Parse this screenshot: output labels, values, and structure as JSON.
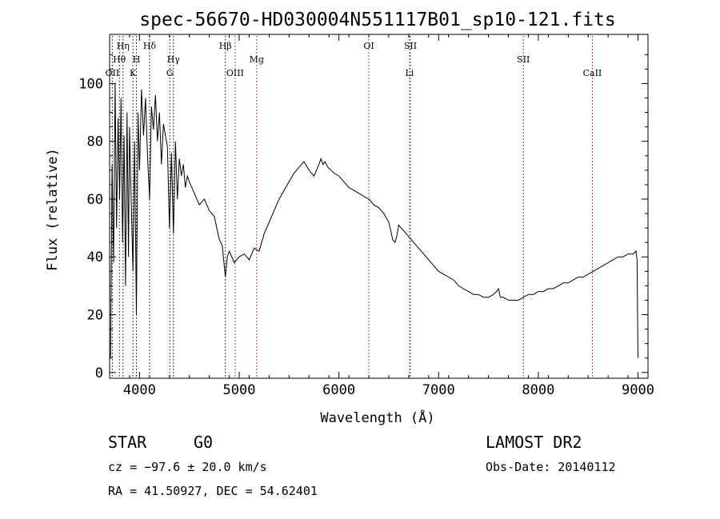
{
  "chart_data": {
    "type": "line",
    "title": "spec-56670-HD030004N551117B01_sp10-121.fits",
    "xlabel": "Wavelength (Å)",
    "ylabel": "Flux (relative)",
    "xlim": [
      3700,
      9100
    ],
    "ylim": [
      -2,
      117
    ],
    "x_ticks": [
      "4000",
      "5000",
      "6000",
      "7000",
      "8000",
      "9000"
    ],
    "y_ticks": [
      "0",
      "20",
      "40",
      "60",
      "80",
      "100"
    ],
    "x_tick_values": [
      4000,
      5000,
      6000,
      7000,
      8000,
      9000
    ],
    "y_tick_values": [
      0,
      20,
      40,
      60,
      80,
      100
    ],
    "grid": false,
    "series": [
      {
        "x": [
          3710,
          3725,
          3740,
          3755,
          3770,
          3785,
          3800,
          3815,
          3830,
          3845,
          3860,
          3875,
          3889,
          3900,
          3915,
          3934,
          3950,
          3969,
          3985,
          4000,
          4020,
          4040,
          4060,
          4080,
          4101,
          4120,
          4140,
          4160,
          4180,
          4200,
          4220,
          4240,
          4260,
          4280,
          4300,
          4320,
          4340,
          4360,
          4380,
          4400,
          4420,
          4440,
          4460,
          4480,
          4500,
          4550,
          4600,
          4650,
          4700,
          4750,
          4800,
          4830,
          4861,
          4880,
          4900,
          4950,
          5000,
          5050,
          5100,
          5150,
          5200,
          5250,
          5300,
          5350,
          5400,
          5450,
          5500,
          5550,
          5600,
          5650,
          5700,
          5750,
          5800,
          5820,
          5840,
          5860,
          5890,
          5920,
          5950,
          6000,
          6050,
          6100,
          6150,
          6200,
          6250,
          6300,
          6350,
          6400,
          6450,
          6500,
          6520,
          6540,
          6563,
          6580,
          6600,
          6650,
          6700,
          6750,
          6800,
          6850,
          6900,
          6950,
          7000,
          7050,
          7100,
          7150,
          7200,
          7250,
          7300,
          7350,
          7400,
          7450,
          7500,
          7550,
          7580,
          7600,
          7620,
          7650,
          7700,
          7750,
          7800,
          7850,
          7900,
          7950,
          8000,
          8050,
          8100,
          8150,
          8200,
          8250,
          8300,
          8350,
          8400,
          8450,
          8500,
          8550,
          8600,
          8650,
          8700,
          8750,
          8800,
          8850,
          8900,
          8950,
          8980,
          8990,
          9000
        ],
        "y": [
          5,
          72,
          38,
          100,
          50,
          88,
          60,
          95,
          45,
          82,
          30,
          90,
          40,
          85,
          62,
          35,
          80,
          20,
          90,
          70,
          98,
          82,
          95,
          75,
          60,
          92,
          84,
          96,
          80,
          90,
          72,
          86,
          82,
          78,
          50,
          76,
          48,
          80,
          60,
          74,
          68,
          72,
          64,
          68,
          66,
          62,
          58,
          60,
          56,
          54,
          46,
          44,
          33,
          40,
          42,
          38,
          40,
          41,
          39,
          43,
          42,
          48,
          52,
          56,
          60,
          63,
          66,
          69,
          71,
          73,
          70,
          68,
          72,
          74,
          72,
          73,
          71,
          70,
          69,
          68,
          66,
          64,
          63,
          62,
          61,
          60,
          58,
          57,
          55,
          52,
          49,
          46,
          45,
          47,
          51,
          49,
          47,
          45,
          43,
          41,
          39,
          37,
          35,
          34,
          33,
          32,
          30,
          29,
          28,
          27,
          27,
          26,
          26,
          27,
          28,
          29,
          26,
          26,
          25,
          25,
          25,
          26,
          27,
          27,
          28,
          28,
          29,
          29,
          30,
          31,
          31,
          32,
          33,
          33,
          34,
          35,
          36,
          37,
          38,
          39,
          40,
          40,
          41,
          41,
          42,
          39,
          5
        ]
      }
    ],
    "lines": [
      {
        "label": "OII",
        "x": 3727,
        "row": 3,
        "style": "black"
      },
      {
        "label": "Hθ",
        "x": 3798,
        "row": 2,
        "style": "black"
      },
      {
        "label": "Hη",
        "x": 3835,
        "row": 1,
        "style": "black"
      },
      {
        "label": "K",
        "x": 3934,
        "row": 3,
        "style": "black"
      },
      {
        "label": "H",
        "x": 3969,
        "row": 2,
        "style": "black"
      },
      {
        "label": "Hδ",
        "x": 4101,
        "row": 1,
        "style": "black"
      },
      {
        "label": "G",
        "x": 4304,
        "row": 3,
        "style": "black"
      },
      {
        "label": "Hγ",
        "x": 4340,
        "row": 2,
        "style": "black"
      },
      {
        "label": "Hβ",
        "x": 4861,
        "row": 1,
        "style": "black"
      },
      {
        "label": "OIII",
        "x": 4959,
        "row": 3,
        "style": "red"
      },
      {
        "label": "Mg",
        "x": 5175,
        "row": 2,
        "style": "red"
      },
      {
        "label": "OI",
        "x": 6300,
        "row": 1,
        "style": "red"
      },
      {
        "label": "SII",
        "x": 6717,
        "row": 1,
        "style": "red"
      },
      {
        "label": "Li",
        "x": 6708,
        "row": 3,
        "style": "red"
      },
      {
        "label": "SII",
        "x": 7850,
        "row": 2,
        "style": "red"
      },
      {
        "label": "CaII",
        "x": 8542,
        "row": 3,
        "style": "red"
      }
    ]
  },
  "info": {
    "class_label": "STAR",
    "subclass": "G0",
    "survey": "LAMOST DR2",
    "cz": "cz = −97.6 ± 20.0 km/s",
    "obs_date": "Obs-Date: 20140112",
    "coords": "RA =  41.50927, DEC =  54.62401"
  }
}
